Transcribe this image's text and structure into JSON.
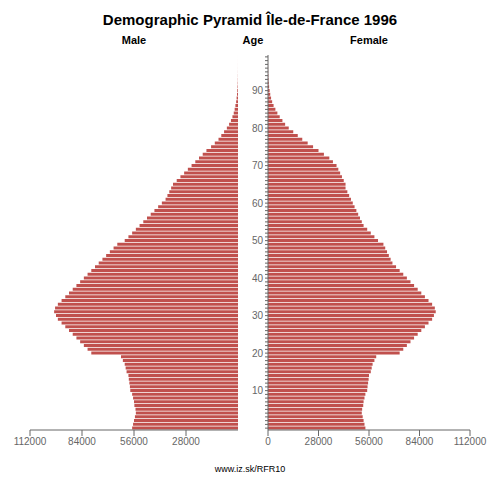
{
  "chart_data": {
    "type": "bar",
    "orientation": "horizontal",
    "title": "Demographic Pyramid Île-de-France 1996",
    "y_label": "Age",
    "annotations": [
      "www.iz.sk/RFR10"
    ],
    "categories": [
      null,
      null,
      null,
      null,
      null,
      null,
      null,
      null,
      null,
      null,
      "10",
      null,
      null,
      null,
      null,
      null,
      null,
      null,
      null,
      null,
      "20",
      null,
      null,
      null,
      null,
      null,
      null,
      null,
      null,
      null,
      "30",
      null,
      null,
      null,
      null,
      null,
      null,
      null,
      null,
      null,
      "40",
      null,
      null,
      null,
      null,
      null,
      null,
      null,
      null,
      null,
      "50",
      null,
      null,
      null,
      null,
      null,
      null,
      null,
      null,
      null,
      "60",
      null,
      null,
      null,
      null,
      null,
      null,
      null,
      null,
      null,
      "70",
      null,
      null,
      null,
      null,
      null,
      null,
      null,
      null,
      null,
      "80",
      null,
      null,
      null,
      null,
      null,
      null,
      null,
      null,
      null,
      "90",
      null,
      null,
      null,
      null,
      null,
      null,
      null,
      null,
      null
    ],
    "series": [
      {
        "name": "Male",
        "color": "#c0504d",
        "values": [
          57000,
          56500,
          56000,
          55500,
          55000,
          55200,
          55800,
          56000,
          56500,
          57000,
          58000,
          58200,
          58500,
          58800,
          59000,
          60000,
          60500,
          61000,
          62000,
          63000,
          79000,
          81000,
          83000,
          85000,
          87000,
          89000,
          91000,
          93000,
          95000,
          97000,
          98000,
          99000,
          98500,
          97000,
          95000,
          93000,
          91000,
          89000,
          87000,
          85000,
          83000,
          81000,
          79000,
          77000,
          75000,
          73000,
          71000,
          69000,
          67000,
          65000,
          61000,
          59000,
          57000,
          55000,
          53000,
          51000,
          49000,
          47000,
          45000,
          43000,
          41000,
          39000,
          38000,
          37000,
          36000,
          35000,
          33000,
          31000,
          29000,
          27000,
          25000,
          23000,
          21000,
          19000,
          17000,
          14500,
          12500,
          10500,
          9000,
          7500,
          6000,
          4800,
          3800,
          3000,
          2300,
          1800,
          1400,
          1000,
          750,
          530,
          370,
          240,
          160,
          95,
          58,
          32,
          17,
          9,
          4,
          1
        ]
      },
      {
        "name": "Female",
        "color": "#c0504d",
        "values": [
          54000,
          53500,
          53000,
          52500,
          52000,
          52200,
          52800,
          53000,
          53500,
          54000,
          55000,
          55200,
          55500,
          55800,
          56000,
          57000,
          57500,
          58000,
          59000,
          60000,
          73000,
          75000,
          77000,
          79000,
          81000,
          83000,
          85000,
          87000,
          89000,
          91000,
          92000,
          93000,
          92500,
          91000,
          89000,
          87000,
          85000,
          83000,
          81000,
          79000,
          77000,
          75000,
          73000,
          71000,
          69000,
          68000,
          67000,
          66000,
          65000,
          64000,
          61000,
          59000,
          57000,
          55000,
          53000,
          52000,
          51000,
          50000,
          49000,
          48000,
          47000,
          46000,
          45000,
          44000,
          43000,
          43000,
          42000,
          41000,
          40000,
          39000,
          38000,
          36000,
          34000,
          31000,
          28000,
          25000,
          22000,
          19000,
          16500,
          14000,
          11500,
          9500,
          8000,
          6500,
          5200,
          4100,
          3100,
          2300,
          1700,
          1250,
          900,
          630,
          440,
          290,
          185,
          110,
          65,
          35,
          15,
          5
        ]
      }
    ],
    "xlim": [
      0,
      112000
    ],
    "xticks": [
      0,
      28000,
      56000,
      84000,
      112000
    ],
    "grid": false
  }
}
